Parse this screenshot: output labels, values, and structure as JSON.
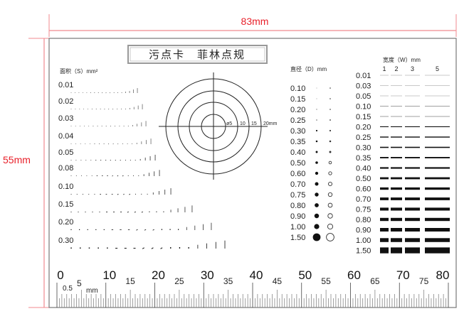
{
  "dimensions": {
    "width_label": "83mm",
    "height_label": "55mm",
    "line_color": "#e8202a"
  },
  "title": "污点卡　菲林点规",
  "area": {
    "header": "面积（S）mm²",
    "rows": [
      "0.01",
      "0.02",
      "0.03",
      "0.04",
      "0.05",
      "0.08",
      "0.10",
      "0.15",
      "0.20",
      "0.30"
    ]
  },
  "target": {
    "labels": [
      "ø5",
      "10",
      "15",
      "20mm"
    ]
  },
  "diameter": {
    "header": "直径（D）mm",
    "rows": [
      "0.10",
      "0.15",
      "0.20",
      "0.25",
      "0.30",
      "0.35",
      "0.40",
      "0.50",
      "0.60",
      "0.70",
      "0.75",
      "0.80",
      "0.90",
      "1.00",
      "1.50"
    ]
  },
  "width": {
    "header": "宽度（W）mm",
    "columns": [
      "1",
      "2",
      "3",
      "5"
    ],
    "rows": [
      "0.01",
      "0.03",
      "0.05",
      "0.10",
      "0.15",
      "0.20",
      "0.25",
      "0.30",
      "0.35",
      "0.40",
      "0.50",
      "0.60",
      "0.70",
      "0.75",
      "0.80",
      "0.90",
      "1.00",
      "1.50"
    ]
  },
  "ruler": {
    "major_labels": [
      "0",
      "10",
      "20",
      "30",
      "40",
      "50",
      "60",
      "70",
      "80"
    ],
    "minor_labels": [
      "15",
      "25",
      "35",
      "45",
      "55",
      "65",
      "75"
    ],
    "fine_label": "0.5",
    "five_label": "5",
    "unit": "mm"
  }
}
